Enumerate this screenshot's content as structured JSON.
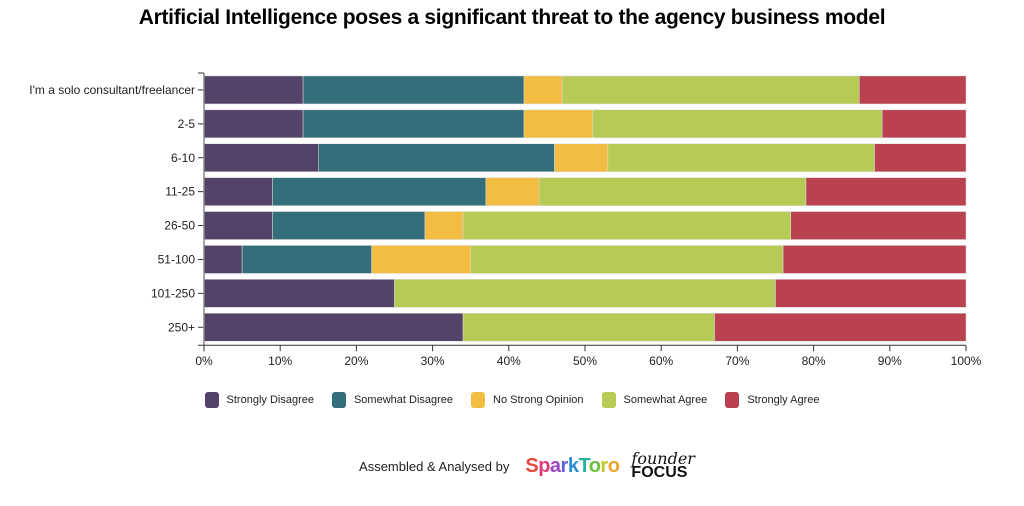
{
  "chart_data": {
    "type": "bar",
    "orientation": "horizontal",
    "stacked": "percent",
    "title": "Artificial Intelligence poses a significant threat to the agency business model",
    "xlabel": "",
    "ylabel": "",
    "xlim": [
      0,
      100
    ],
    "x_ticks": [
      "0%",
      "10%",
      "20%",
      "30%",
      "40%",
      "50%",
      "60%",
      "70%",
      "80%",
      "90%",
      "100%"
    ],
    "grid": false,
    "legend_position": "bottom",
    "categories": [
      "I'm a solo consultant/freelancer",
      "2-5",
      "6-10",
      "11-25",
      "26-50",
      "51-100",
      "101-250",
      "250+"
    ],
    "series": [
      {
        "name": "Strongly Disagree",
        "color": "#534368",
        "values": [
          13,
          13,
          15,
          9,
          9,
          5,
          25,
          34
        ]
      },
      {
        "name": "Somewhat Disagree",
        "color": "#356e7b",
        "values": [
          29,
          29,
          31,
          28,
          20,
          17,
          0,
          0
        ]
      },
      {
        "name": "No Strong Opinion",
        "color": "#f2bd42",
        "values": [
          5,
          9,
          7,
          7,
          5,
          13,
          0,
          0
        ]
      },
      {
        "name": "Somewhat Agree",
        "color": "#b6cb55",
        "values": [
          39,
          38,
          35,
          35,
          43,
          41,
          50,
          33
        ]
      },
      {
        "name": "Strongly Agree",
        "color": "#b94150",
        "values": [
          14,
          11,
          12,
          21,
          23,
          24,
          25,
          33
        ]
      }
    ]
  },
  "credit": {
    "text": "Assembled & Analysed by",
    "logo1": "SparkToro",
    "logo1_colors": [
      "#e8493f",
      "#e2397a",
      "#9b46c9",
      "#5f5fd8",
      "#2c8fd6",
      "#26b0a0",
      "#6cbf3c",
      "#c6c52c",
      "#f0a22a"
    ],
    "logo2_top": "founder",
    "logo2_bottom": "FOCUS"
  }
}
